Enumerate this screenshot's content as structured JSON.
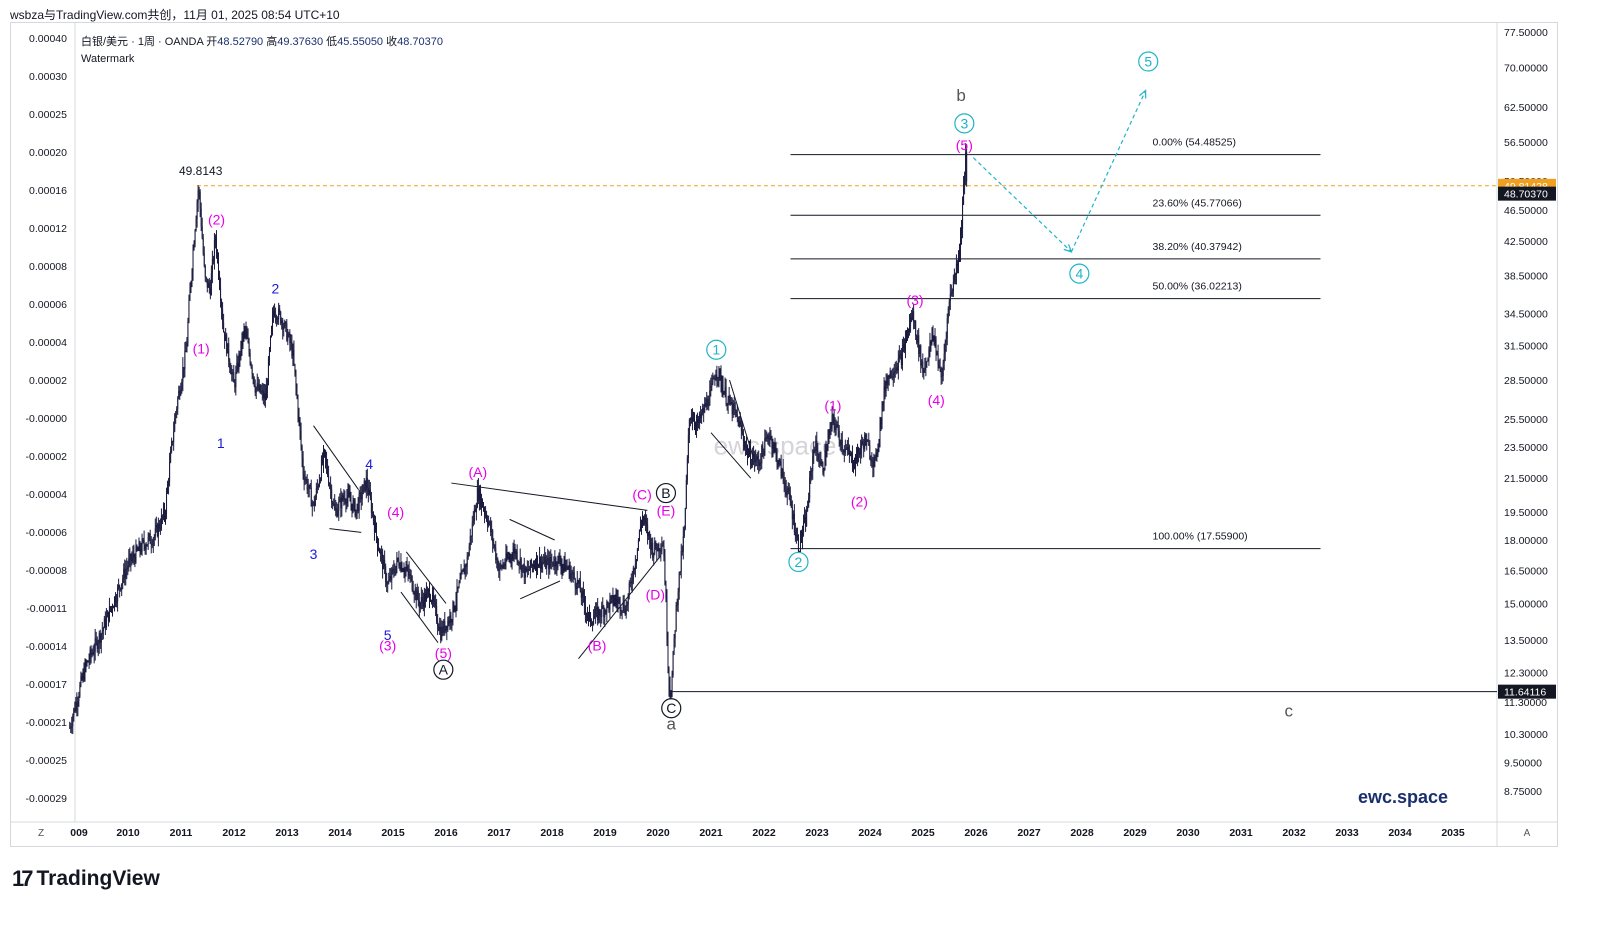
{
  "header": {
    "caption": "wsbza与TradingView.com共创，11月 01, 2025 08:54 UTC+10",
    "symbol": "白银/美元 · 1周 · OANDA",
    "open_label": "开",
    "open": "48.52790",
    "high_label": "高",
    "high": "49.37630",
    "low_label": "低",
    "low": "45.55050",
    "close_label": "收",
    "close": "48.70370",
    "watermark_label": "Watermark"
  },
  "footer": {
    "brand": "TradingView",
    "left_button": "Z",
    "right_button": "A"
  },
  "colors": {
    "candle": "#1a1a3e",
    "magenta": "#e600e6",
    "cyan": "#1fb4c8",
    "blue": "#1a1adb",
    "orange": "#f0a020",
    "gray": "#555555",
    "brand": "#1a2f6e"
  },
  "chart_data": {
    "type": "candlestick",
    "x_axis": {
      "ticks": [
        "009",
        "2010",
        "2011",
        "2012",
        "2013",
        "2014",
        "2015",
        "2016",
        "2017",
        "2018",
        "2019",
        "2020",
        "2021",
        "2022",
        "2023",
        "2024",
        "2025",
        "2026",
        "2027",
        "2028",
        "2029",
        "2030",
        "2031",
        "2032",
        "2033",
        "2034",
        "2035"
      ]
    },
    "right_axis": {
      "scale": "log",
      "ticks": [
        "77.50000",
        "70.00000",
        "62.50000",
        "56.50000",
        "50.50000",
        "46.50000",
        "42.50000",
        "38.50000",
        "34.50000",
        "31.50000",
        "28.50000",
        "25.50000",
        "23.50000",
        "21.50000",
        "19.50000",
        "18.00000",
        "16.50000",
        "15.00000",
        "13.50000",
        "12.30000",
        "11.30000",
        "10.30000",
        "9.50000",
        "8.75000"
      ],
      "tick_values": [
        77.5,
        70,
        62.5,
        56.5,
        50.5,
        46.5,
        42.5,
        38.5,
        34.5,
        31.5,
        28.5,
        25.5,
        23.5,
        21.5,
        19.5,
        18,
        16.5,
        15,
        13.5,
        12.3,
        11.3,
        10.3,
        9.5,
        8.75
      ],
      "price_badges": [
        {
          "value": 49.81428,
          "text": "49.81428",
          "color": "#f0a020"
        },
        {
          "value": 48.7037,
          "text": "48.70370",
          "color": "#131722"
        },
        {
          "value": 11.64116,
          "text": "11.64116",
          "color": "#131722"
        }
      ]
    },
    "left_axis": {
      "ticks": [
        "0.00040",
        "0.00030",
        "0.00025",
        "0.00020",
        "0.00016",
        "0.00012",
        "0.00008",
        "0.00006",
        "0.00004",
        "0.00002",
        "-0.00000",
        "-0.00002",
        "-0.00004",
        "-0.00006",
        "-0.00008",
        "-0.00011",
        "-0.00014",
        "-0.00017",
        "-0.00021",
        "-0.00025",
        "-0.00029"
      ]
    },
    "price_path": [
      [
        2008.9,
        10.5
      ],
      [
        2009.2,
        12.5
      ],
      [
        2009.5,
        13.8
      ],
      [
        2009.8,
        15.5
      ],
      [
        2010.0,
        16.8
      ],
      [
        2010.3,
        17.8
      ],
      [
        2010.5,
        18.2
      ],
      [
        2010.7,
        19.5
      ],
      [
        2010.9,
        26
      ],
      [
        2011.1,
        31
      ],
      [
        2011.33,
        49.8
      ],
      [
        2011.45,
        38
      ],
      [
        2011.55,
        37
      ],
      [
        2011.65,
        43
      ],
      [
        2011.8,
        33
      ],
      [
        2012.0,
        28
      ],
      [
        2012.2,
        33
      ],
      [
        2012.4,
        28
      ],
      [
        2012.6,
        27
      ],
      [
        2012.75,
        35
      ],
      [
        2012.9,
        34
      ],
      [
        2013.1,
        31
      ],
      [
        2013.3,
        22
      ],
      [
        2013.5,
        19.8
      ],
      [
        2013.7,
        23
      ],
      [
        2013.9,
        19.5
      ],
      [
        2014.1,
        20.5
      ],
      [
        2014.3,
        19.6
      ],
      [
        2014.5,
        21.3
      ],
      [
        2014.7,
        18
      ],
      [
        2014.9,
        15.8
      ],
      [
        2015.1,
        17
      ],
      [
        2015.3,
        16.3
      ],
      [
        2015.5,
        15
      ],
      [
        2015.7,
        15.5
      ],
      [
        2015.9,
        13.8
      ],
      [
        2016.1,
        14.5
      ],
      [
        2016.4,
        17
      ],
      [
        2016.6,
        20.7
      ],
      [
        2016.8,
        19
      ],
      [
        2017.0,
        16.5
      ],
      [
        2017.3,
        17.5
      ],
      [
        2017.5,
        16.3
      ],
      [
        2017.7,
        17
      ],
      [
        2017.9,
        16.8
      ],
      [
        2018.1,
        17
      ],
      [
        2018.3,
        16.6
      ],
      [
        2018.5,
        15.8
      ],
      [
        2018.7,
        14.3
      ],
      [
        2018.9,
        14.6
      ],
      [
        2019.2,
        15.2
      ],
      [
        2019.4,
        14.8
      ],
      [
        2019.6,
        17.4
      ],
      [
        2019.7,
        19.3
      ],
      [
        2019.9,
        17.5
      ],
      [
        2020.1,
        17.9
      ],
      [
        2020.2,
        12
      ],
      [
        2020.25,
        11.64
      ],
      [
        2020.35,
        15
      ],
      [
        2020.5,
        18.5
      ],
      [
        2020.6,
        26
      ],
      [
        2020.75,
        25
      ],
      [
        2021.0,
        27.5
      ],
      [
        2021.1,
        29.5
      ],
      [
        2021.3,
        27
      ],
      [
        2021.5,
        25.5
      ],
      [
        2021.7,
        23
      ],
      [
        2021.9,
        22.5
      ],
      [
        2022.1,
        24.5
      ],
      [
        2022.3,
        22.2
      ],
      [
        2022.5,
        20
      ],
      [
        2022.65,
        17.6
      ],
      [
        2022.8,
        19.2
      ],
      [
        2022.95,
        23.8
      ],
      [
        2023.1,
        22
      ],
      [
        2023.3,
        25.5
      ],
      [
        2023.5,
        23.5
      ],
      [
        2023.7,
        22.5
      ],
      [
        2023.9,
        24
      ],
      [
        2024.1,
        22.3
      ],
      [
        2024.3,
        28.5
      ],
      [
        2024.6,
        30.5
      ],
      [
        2024.8,
        34.5
      ],
      [
        2025.0,
        29.2
      ],
      [
        2025.2,
        32.5
      ],
      [
        2025.35,
        28.3
      ],
      [
        2025.5,
        36
      ],
      [
        2025.6,
        38.5
      ],
      [
        2025.7,
        42
      ],
      [
        2025.76,
        48.5
      ],
      [
        2025.8,
        54.48
      ],
      [
        2025.83,
        48.7
      ]
    ],
    "fibonacci": [
      {
        "ratio": "0.00%",
        "price": 54.48525,
        "label": "0.00% (54.48525)"
      },
      {
        "ratio": "23.60%",
        "price": 45.77066,
        "label": "23.60% (45.77066)"
      },
      {
        "ratio": "38.20%",
        "price": 40.37942,
        "label": "38.20% (40.37942)"
      },
      {
        "ratio": "50.00%",
        "price": 36.02213,
        "label": "50.00% (36.02213)"
      },
      {
        "ratio": "100.00%",
        "price": 17.559,
        "label": "100.00% (17.55900)"
      }
    ],
    "fib_x_range": [
      2022.5,
      2032.5
    ],
    "horizontal_levels": [
      {
        "price": 49.8143,
        "style": "dashed",
        "color": "#f0a020",
        "label": "49.8143",
        "label_x": 2011.0
      },
      {
        "price": 11.64116,
        "style": "solid",
        "color": "#131722",
        "x_start": 2020.25
      }
    ],
    "projection": [
      [
        2025.95,
        54.0
      ],
      [
        2027.8,
        41.2
      ],
      [
        2029.2,
        65.5
      ]
    ],
    "wave_labels": [
      {
        "text": "(1)",
        "x": 2011.38,
        "y": 31.2,
        "color": "#e600e6",
        "circle": false
      },
      {
        "text": "(2)",
        "x": 2011.67,
        "y": 45.2,
        "color": "#e600e6",
        "circle": false
      },
      {
        "text": "1",
        "x": 2011.75,
        "y": 23.8,
        "color": "#1a1adb",
        "circle": false
      },
      {
        "text": "2",
        "x": 2012.78,
        "y": 37.1,
        "color": "#1a1adb",
        "circle": false
      },
      {
        "text": "3",
        "x": 2013.5,
        "y": 17.3,
        "color": "#1a1adb",
        "circle": false
      },
      {
        "text": "4",
        "x": 2014.55,
        "y": 22.4,
        "color": "#1a1adb",
        "circle": false
      },
      {
        "text": "(4)",
        "x": 2015.05,
        "y": 19.5,
        "color": "#e600e6",
        "circle": false
      },
      {
        "text": "5",
        "x": 2014.9,
        "y": 13.7,
        "color": "#1a1adb",
        "circle": false
      },
      {
        "text": "(3)",
        "x": 2014.9,
        "y": 13.3,
        "color": "#e600e6",
        "circle": false
      },
      {
        "text": "(5)",
        "x": 2015.95,
        "y": 13.0,
        "color": "#e600e6",
        "circle": false
      },
      {
        "text": "A",
        "x": 2015.95,
        "y": 12.4,
        "color": "#131722",
        "circle": true
      },
      {
        "text": "(A)",
        "x": 2016.6,
        "y": 21.9,
        "color": "#e600e6",
        "circle": false
      },
      {
        "text": "(B)",
        "x": 2018.85,
        "y": 13.3,
        "color": "#e600e6",
        "circle": false
      },
      {
        "text": "(C)",
        "x": 2019.7,
        "y": 20.5,
        "color": "#e600e6",
        "circle": false
      },
      {
        "text": "(E)",
        "x": 2020.15,
        "y": 19.6,
        "color": "#e600e6",
        "circle": false
      },
      {
        "text": "(D)",
        "x": 2019.95,
        "y": 15.4,
        "color": "#e600e6",
        "circle": false
      },
      {
        "text": "B",
        "x": 2020.15,
        "y": 20.6,
        "color": "#131722",
        "circle": true
      },
      {
        "text": "C",
        "x": 2020.25,
        "y": 11.1,
        "color": "#131722",
        "circle": true
      },
      {
        "text": "a",
        "x": 2020.25,
        "y": 10.6,
        "color": "#555555",
        "circle": false
      },
      {
        "text": "1",
        "x": 2021.1,
        "y": 31.1,
        "color": "#1fb4c8",
        "circle": true
      },
      {
        "text": "2",
        "x": 2022.65,
        "y": 16.9,
        "color": "#1fb4c8",
        "circle": true
      },
      {
        "text": "(1)",
        "x": 2023.3,
        "y": 26.5,
        "color": "#e600e6",
        "circle": false
      },
      {
        "text": "(2)",
        "x": 2023.8,
        "y": 20.1,
        "color": "#e600e6",
        "circle": false
      },
      {
        "text": "(3)",
        "x": 2024.85,
        "y": 35.9,
        "color": "#e600e6",
        "circle": false
      },
      {
        "text": "(4)",
        "x": 2025.25,
        "y": 26.9,
        "color": "#e600e6",
        "circle": false
      },
      {
        "text": "(5)",
        "x": 2025.78,
        "y": 56.0,
        "color": "#e600e6",
        "circle": false
      },
      {
        "text": "3",
        "x": 2025.78,
        "y": 59.6,
        "color": "#1fb4c8",
        "circle": true
      },
      {
        "text": "b",
        "x": 2025.72,
        "y": 64.5,
        "color": "#555555",
        "circle": false
      },
      {
        "text": "4",
        "x": 2027.95,
        "y": 38.7,
        "color": "#1fb4c8",
        "circle": true
      },
      {
        "text": "5",
        "x": 2029.25,
        "y": 71.2,
        "color": "#1fb4c8",
        "circle": true
      },
      {
        "text": "c",
        "x": 2031.9,
        "y": 11.0,
        "color": "#555555",
        "circle": false
      }
    ],
    "channel_lines": [
      [
        [
          2013.5,
          25.0
        ],
        [
          2014.35,
          20.8
        ]
      ],
      [
        [
          2013.8,
          18.6
        ],
        [
          2014.4,
          18.4
        ]
      ],
      [
        [
          2015.25,
          17.4
        ],
        [
          2016.0,
          15.0
        ]
      ],
      [
        [
          2015.15,
          15.5
        ],
        [
          2015.85,
          13.4
        ]
      ],
      [
        [
          2016.1,
          21.2
        ],
        [
          2019.8,
          19.6
        ]
      ],
      [
        [
          2017.2,
          19.1
        ],
        [
          2018.05,
          18.0
        ]
      ],
      [
        [
          2017.4,
          15.2
        ],
        [
          2018.15,
          16.0
        ]
      ],
      [
        [
          2018.5,
          12.8
        ],
        [
          2020.05,
          17.2
        ]
      ],
      [
        [
          2021.35,
          28.5
        ],
        [
          2021.8,
          22.8
        ]
      ],
      [
        [
          2021.0,
          24.5
        ],
        [
          2021.75,
          21.5
        ]
      ]
    ],
    "watermark_text": "ewc.space",
    "brand_text": "ewc.space"
  }
}
